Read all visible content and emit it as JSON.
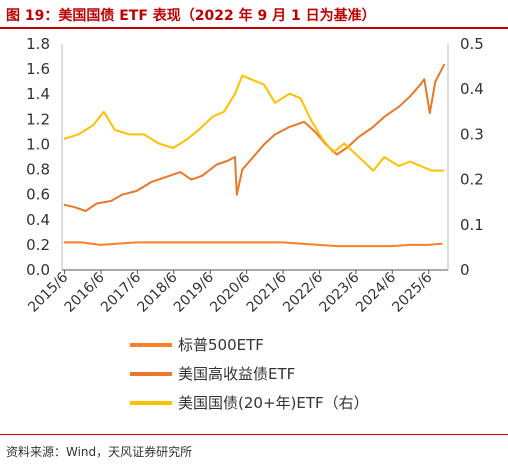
{
  "header": {
    "title": "图 19：美国国债 ETF 表现（2022 年 9 月 1 日为基准）"
  },
  "footer": {
    "source": "资料来源：Wind，天风证券研究所"
  },
  "colors": {
    "sp500": "#ff7f27",
    "highyield": "#e8782a",
    "treasury": "#ffc000",
    "title": "#c00000"
  },
  "chart_data": {
    "type": "line",
    "x": [
      "2015/6",
      "2016/6",
      "2017/6",
      "2018/6",
      "2019/6",
      "2020/6",
      "2021/6",
      "2022/6",
      "2023/6",
      "2024/6",
      "2025/6"
    ],
    "xlabel": "",
    "y_left": {
      "ylim": [
        0,
        1.8
      ],
      "ticks": [
        "0.0",
        "0.2",
        "0.4",
        "0.6",
        "0.8",
        "1.0",
        "1.2",
        "1.4",
        "1.6",
        "1.8"
      ]
    },
    "y_right": {
      "ylim": [
        0,
        0.5
      ],
      "ticks": [
        "0",
        "0.1",
        "0.2",
        "0.3",
        "0.4",
        "0.5"
      ]
    },
    "series": [
      {
        "name": "标普500ETF",
        "axis": "left",
        "x": [
          2015.4,
          2015.9,
          2016.4,
          2016.9,
          2017.4,
          2017.9,
          2018.4,
          2018.9,
          2019.4,
          2019.9,
          2020.4,
          2020.9,
          2021.4,
          2021.9,
          2022.4,
          2022.9,
          2023.4,
          2023.9,
          2024.4,
          2024.9,
          2025.4,
          2025.8
        ],
        "values": [
          0.22,
          0.22,
          0.2,
          0.21,
          0.22,
          0.22,
          0.22,
          0.22,
          0.22,
          0.22,
          0.22,
          0.22,
          0.22,
          0.21,
          0.2,
          0.19,
          0.19,
          0.19,
          0.19,
          0.2,
          0.2,
          0.21
        ]
      },
      {
        "name": "美国高收益债ETF",
        "axis": "left",
        "x": [
          2015.4,
          2015.7,
          2016.0,
          2016.3,
          2016.7,
          2017.0,
          2017.4,
          2017.8,
          2018.2,
          2018.6,
          2018.9,
          2019.2,
          2019.6,
          2019.9,
          2020.1,
          2020.15,
          2020.3,
          2020.6,
          2020.9,
          2021.2,
          2021.6,
          2022.0,
          2022.3,
          2022.6,
          2022.9,
          2023.2,
          2023.5,
          2023.9,
          2024.2,
          2024.6,
          2024.9,
          2025.2,
          2025.3,
          2025.45,
          2025.6,
          2025.85
        ],
        "values": [
          0.52,
          0.5,
          0.47,
          0.53,
          0.55,
          0.6,
          0.63,
          0.7,
          0.74,
          0.78,
          0.72,
          0.75,
          0.84,
          0.87,
          0.9,
          0.6,
          0.8,
          0.9,
          1.0,
          1.08,
          1.14,
          1.18,
          1.1,
          1.0,
          0.92,
          0.98,
          1.06,
          1.14,
          1.22,
          1.3,
          1.38,
          1.48,
          1.52,
          1.25,
          1.5,
          1.64
        ]
      },
      {
        "name": "美国国债(20+年)ETF（右）",
        "axis": "right",
        "x": [
          2015.4,
          2015.8,
          2016.2,
          2016.5,
          2016.8,
          2017.2,
          2017.6,
          2018.0,
          2018.4,
          2018.8,
          2019.1,
          2019.5,
          2019.8,
          2020.1,
          2020.3,
          2020.6,
          2020.9,
          2021.2,
          2021.6,
          2021.9,
          2022.2,
          2022.5,
          2022.8,
          2023.1,
          2023.5,
          2023.9,
          2024.2,
          2024.6,
          2024.9,
          2025.2,
          2025.5,
          2025.85
        ],
        "values": [
          0.29,
          0.3,
          0.32,
          0.35,
          0.31,
          0.3,
          0.3,
          0.28,
          0.27,
          0.29,
          0.31,
          0.34,
          0.35,
          0.39,
          0.43,
          0.42,
          0.41,
          0.37,
          0.39,
          0.38,
          0.33,
          0.29,
          0.26,
          0.28,
          0.25,
          0.22,
          0.25,
          0.23,
          0.24,
          0.23,
          0.22,
          0.22
        ]
      }
    ],
    "grid": false,
    "legend": "bottom"
  }
}
